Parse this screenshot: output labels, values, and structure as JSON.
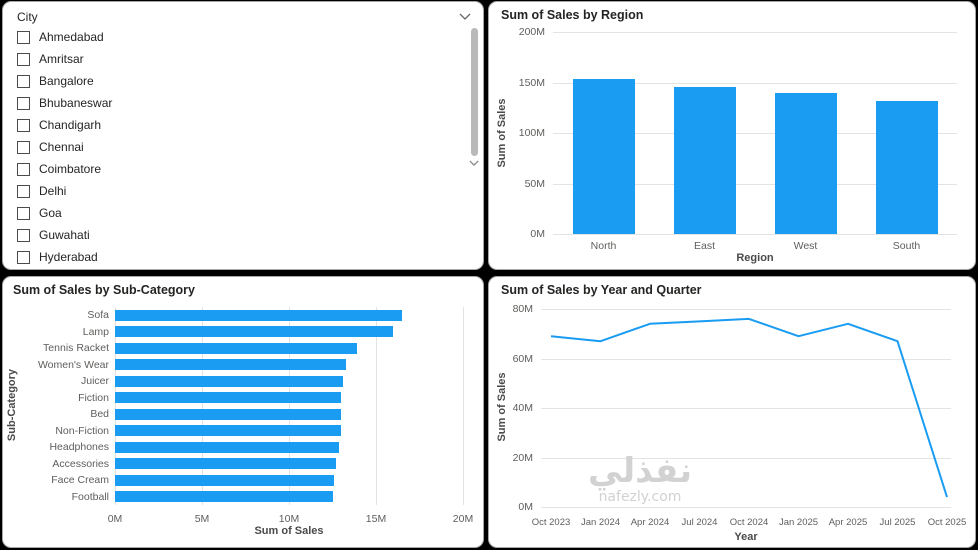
{
  "accent": "#199CF2",
  "slicer": {
    "title": "City",
    "items": [
      "Ahmedabad",
      "Amritsar",
      "Bangalore",
      "Bhubaneswar",
      "Chandigarh",
      "Chennai",
      "Coimbatore",
      "Delhi",
      "Goa",
      "Guwahati",
      "Hyderabad"
    ]
  },
  "chart_data": [
    {
      "id": "region-bar",
      "type": "bar",
      "title": "Sum of Sales by Region",
      "categories": [
        "North",
        "East",
        "West",
        "South"
      ],
      "values": [
        153,
        146,
        140,
        132
      ],
      "unit": "M",
      "xlabel": "Region",
      "ylabel": "Sum of Sales",
      "ylim": [
        0,
        200
      ],
      "yticks": [
        "0M",
        "50M",
        "100M",
        "150M",
        "200M"
      ],
      "grid": "horizontal",
      "legend": "none"
    },
    {
      "id": "subcategory-hbar",
      "type": "bar",
      "orientation": "horizontal",
      "title": "Sum of Sales by Sub-Category",
      "categories": [
        "Sofa",
        "Lamp",
        "Tennis Racket",
        "Women's Wear",
        "Juicer",
        "Fiction",
        "Bed",
        "Non-Fiction",
        "Headphones",
        "Accessories",
        "Face Cream",
        "Football"
      ],
      "values": [
        16.5,
        16.0,
        13.9,
        13.3,
        13.1,
        13.0,
        13.0,
        13.0,
        12.9,
        12.7,
        12.6,
        12.5
      ],
      "unit": "M",
      "xlabel": "Sum of Sales",
      "ylabel": "Sub-Category",
      "xlim": [
        0,
        20
      ],
      "xticks": [
        "0M",
        "5M",
        "10M",
        "15M",
        "20M"
      ],
      "grid": "vertical",
      "legend": "none"
    },
    {
      "id": "year-quarter-line",
      "type": "line",
      "title": "Sum of Sales by Year and Quarter",
      "x": [
        "Oct 2023",
        "Jan 2024",
        "Apr 2024",
        "Jul 2024",
        "Oct 2024",
        "Jan 2025",
        "Apr 2025",
        "Jul 2025",
        "Oct 2025"
      ],
      "values": [
        69,
        67,
        74,
        75,
        76,
        69,
        74,
        67,
        4
      ],
      "unit": "M",
      "xlabel": "Year",
      "ylabel": "Sum of Sales",
      "ylim": [
        0,
        80
      ],
      "yticks": [
        "0M",
        "20M",
        "40M",
        "60M",
        "80M"
      ],
      "grid": "horizontal",
      "legend": "none"
    }
  ],
  "watermark": {
    "text": "نفذلي",
    "domain": "nafezly.com"
  }
}
